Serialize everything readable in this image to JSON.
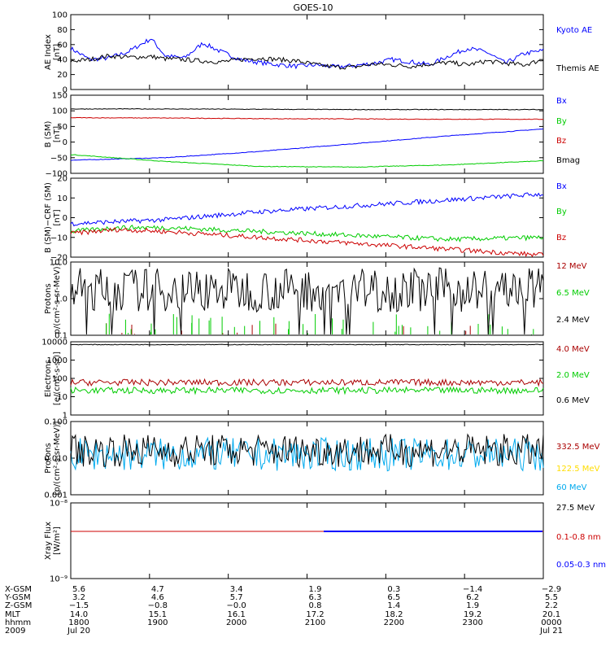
{
  "figure_title": "GOES-10",
  "chart_data": [
    {
      "type": "line",
      "panel": "ae",
      "ylabel": [
        "AE Index",
        "[nT]"
      ],
      "ylim": [
        0,
        100
      ],
      "yticks": [
        "0",
        "20",
        "40",
        "60",
        "80",
        "100"
      ],
      "series": [
        {
          "name": "Kyoto AE",
          "color": "#0000ff",
          "x": [
            0,
            0.04,
            0.08,
            0.12,
            0.17,
            0.2,
            0.24,
            0.28,
            0.32,
            0.36,
            0.4,
            0.44,
            0.48,
            0.52,
            0.56,
            0.6,
            0.64,
            0.68,
            0.72,
            0.76,
            0.8,
            0.84,
            0.88,
            0.92,
            0.96,
            1
          ],
          "y": [
            55,
            40,
            42,
            50,
            68,
            45,
            42,
            62,
            50,
            40,
            36,
            33,
            31,
            33,
            30,
            32,
            35,
            40,
            37,
            33,
            45,
            55,
            50,
            35,
            48,
            52
          ]
        },
        {
          "name": "Themis AE",
          "color": "#000000",
          "x": [
            0,
            0.04,
            0.08,
            0.12,
            0.17,
            0.2,
            0.24,
            0.28,
            0.32,
            0.36,
            0.4,
            0.44,
            0.48,
            0.52,
            0.56,
            0.6,
            0.64,
            0.68,
            0.72,
            0.76,
            0.8,
            0.84,
            0.88,
            0.92,
            0.96,
            1
          ],
          "y": [
            38,
            40,
            45,
            43,
            44,
            41,
            40,
            38,
            37,
            40,
            42,
            40,
            38,
            33,
            30,
            30,
            34,
            33,
            31,
            34,
            36,
            33,
            38,
            35,
            33,
            40
          ]
        }
      ]
    },
    {
      "type": "line",
      "panel": "bsm",
      "ylabel": [
        "B (SM)",
        "[nT]"
      ],
      "ylim": [
        -100,
        150
      ],
      "yticks": [
        "−100",
        "−50",
        "0",
        "50",
        "100",
        "150"
      ],
      "series": [
        {
          "name": "Bx",
          "color": "#0000ff",
          "x": [
            0,
            0.2,
            0.4,
            0.6,
            0.8,
            1
          ],
          "y": [
            -58,
            -50,
            -30,
            -5,
            20,
            42
          ]
        },
        {
          "name": "By",
          "color": "#00cc00",
          "x": [
            0,
            0.2,
            0.4,
            0.6,
            0.8,
            1
          ],
          "y": [
            -40,
            -62,
            -78,
            -80,
            -73,
            -60
          ]
        },
        {
          "name": "Bz",
          "color": "#cc0000",
          "x": [
            0,
            0.2,
            0.4,
            0.6,
            0.8,
            1
          ],
          "y": [
            78,
            77,
            75,
            74,
            73,
            73
          ]
        },
        {
          "name": "Bmag",
          "color": "#000000",
          "x": [
            0,
            0.2,
            0.4,
            0.6,
            0.8,
            1
          ],
          "y": [
            106,
            106,
            105,
            104,
            104,
            104
          ]
        }
      ]
    },
    {
      "type": "line",
      "panel": "bdiff",
      "ylabel": [
        "B (SM)−CRF (SM)",
        "[nT]"
      ],
      "ylim": [
        -20,
        20
      ],
      "yticks": [
        "−20",
        "−10",
        "0",
        "10",
        "20"
      ],
      "series": [
        {
          "name": "Bx",
          "color": "#0000ff",
          "x": [
            0,
            0.2,
            0.4,
            0.6,
            0.8,
            1
          ],
          "y": [
            -3,
            -1,
            3,
            6,
            9,
            12
          ]
        },
        {
          "name": "By",
          "color": "#00cc00",
          "x": [
            0,
            0.1,
            0.2,
            0.4,
            0.6,
            0.8,
            1
          ],
          "y": [
            -7,
            -5,
            -5,
            -7,
            -9,
            -11,
            -10
          ]
        },
        {
          "name": "Bz",
          "color": "#cc0000",
          "x": [
            0,
            0.1,
            0.2,
            0.4,
            0.6,
            0.8,
            1
          ],
          "y": [
            -8,
            -6,
            -7,
            -10,
            -13,
            -16,
            -19
          ]
        }
      ]
    },
    {
      "type": "line",
      "panel": "protons1",
      "ylabel": [
        "Protons",
        "p/(cm²-s-sr-MeV)]"
      ],
      "yscale": "log",
      "ylim": [
        0.1,
        10
      ],
      "yticks": [
        "0.1",
        "1.0",
        "10.0"
      ],
      "series": [
        {
          "name": "12 MeV",
          "color": "#aa0000"
        },
        {
          "name": "6.5 MeV",
          "color": "#00cc00"
        },
        {
          "name": "2.4 MeV",
          "color": "#000000",
          "level": 2
        }
      ]
    },
    {
      "type": "line",
      "panel": "electrons",
      "ylabel": [
        "Electrons",
        "[e/(cm²-s-sr)]"
      ],
      "yscale": "log",
      "ylim": [
        1,
        10000
      ],
      "yticks": [
        "1",
        "10",
        "100",
        "1000",
        "10000"
      ],
      "series": [
        {
          "name": "4.0 MeV",
          "color": "#aa0000",
          "level": 60
        },
        {
          "name": "2.0 MeV",
          "color": "#00cc00",
          "level": 22
        },
        {
          "name": "0.6 MeV",
          "color": "#000000",
          "level": 7000
        }
      ]
    },
    {
      "type": "line",
      "panel": "protons2",
      "ylabel": [
        "Protons",
        "[p/(cm²-s-sr-MeV)]"
      ],
      "yscale": "log",
      "ylim": [
        0.001,
        0.1
      ],
      "yticks": [
        "0.001",
        "0.010",
        "0.100"
      ],
      "series": [
        {
          "name": "332.5 MeV",
          "color": "#aa0000"
        },
        {
          "name": "122.5 MeV",
          "color": "#ffdd00"
        },
        {
          "name": "60 MeV",
          "color": "#00aaee",
          "level": 0.014
        },
        {
          "name": "27.5 MeV",
          "color": "#000000",
          "level": 0.018
        }
      ]
    },
    {
      "type": "line",
      "panel": "xray",
      "ylabel": [
        "Xray Flux",
        "[W/m²]"
      ],
      "yscale": "log",
      "ylim": [
        1e-09,
        1e-08
      ],
      "yticks": [
        "10⁻⁹",
        "10⁻⁸"
      ],
      "series": [
        {
          "name": "0.1-0.8 nm",
          "color": "#cc0000",
          "level": 4.2e-09
        },
        {
          "name": "0.05-0.3 nm",
          "color": "#0000ff"
        }
      ]
    }
  ],
  "x_axis": {
    "row_labels": [
      "X-GSM",
      "Y-GSM",
      "Z-GSM",
      "MLT",
      "hhmm",
      "2009"
    ],
    "columns": [
      [
        "5.6",
        "3.2",
        "−1.5",
        "14.0",
        "1800",
        "Jul 20"
      ],
      [
        "4.7",
        "4.6",
        "−0.8",
        "15.1",
        "1900",
        ""
      ],
      [
        "3.4",
        "5.7",
        "−0.0",
        "16.1",
        "2000",
        ""
      ],
      [
        "1.9",
        "6.3",
        "0.8",
        "17.2",
        "2100",
        ""
      ],
      [
        "0.3",
        "6.5",
        "1.4",
        "18.2",
        "2200",
        ""
      ],
      [
        "−1.4",
        "6.2",
        "1.9",
        "19.2",
        "2300",
        ""
      ],
      [
        "−2.9",
        "5.5",
        "2.2",
        "20.1",
        "0000",
        "Jul 21"
      ]
    ]
  }
}
